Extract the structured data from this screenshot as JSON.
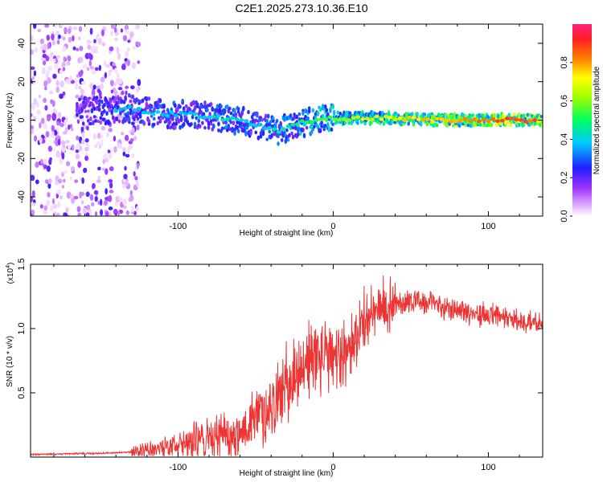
{
  "title": "C2E1.2025.273.10.36.E10",
  "chart_data": [
    {
      "type": "heatmap",
      "xlabel": "Height of straight line (km)",
      "ylabel": "Frequency (Hz)",
      "xlim": [
        -195,
        135
      ],
      "ylim": [
        -50,
        50
      ],
      "xticks": [
        -100,
        0,
        100
      ],
      "xtick_labels": [
        "-100",
        "0",
        "100"
      ],
      "yticks": [
        -40,
        -20,
        0,
        20,
        40
      ],
      "ytick_labels": [
        "-40",
        "-20",
        "0",
        "20",
        "40"
      ],
      "colorbar": {
        "label": "Normalized spectral amplitude",
        "range": [
          0,
          1
        ],
        "ticks": [
          0.0,
          0.2,
          0.4,
          0.6,
          0.8
        ],
        "tick_labels": [
          "0.0",
          "0.2",
          "0.4",
          "0.6",
          "0.8"
        ]
      },
      "ridge": {
        "x": [
          -150,
          -130,
          -110,
          -90,
          -70,
          -50,
          -35,
          -25,
          -10,
          0,
          20,
          40,
          60,
          80,
          100,
          120,
          135
        ],
        "freq": [
          5,
          6,
          3,
          3,
          1,
          -2,
          -6,
          -2,
          0,
          1,
          1,
          1,
          0,
          0,
          0,
          0,
          0
        ],
        "amplitude": [
          0.35,
          0.4,
          0.4,
          0.4,
          0.45,
          0.4,
          0.45,
          0.5,
          0.55,
          0.6,
          0.7,
          0.75,
          0.8,
          0.85,
          0.9,
          0.9,
          0.9
        ]
      },
      "noise_region": {
        "x": [
          -195,
          -125
        ],
        "freq": [
          -50,
          50
        ]
      }
    },
    {
      "type": "line",
      "xlabel": "Height of straight line (km)",
      "ylabel": "SNR (10 * v/v)",
      "scale_label": "(x10",
      "scale_exponent": "4",
      "scale_suffix": ")",
      "xlim": [
        -195,
        135
      ],
      "ylim": [
        0,
        1.5
      ],
      "xticks": [
        -100,
        0,
        100
      ],
      "xtick_labels": [
        "-100",
        "0",
        "100"
      ],
      "yticks": [
        0.5,
        1.0,
        1.5
      ],
      "ytick_labels": [
        "0.5",
        "1.0",
        "1.5"
      ],
      "color": "#ee3333",
      "series": [
        {
          "name": "SNR",
          "x": [
            -195,
            -150,
            -125,
            -110,
            -100,
            -80,
            -60,
            -50,
            -40,
            -30,
            -20,
            -10,
            0,
            10,
            20,
            30,
            40,
            50,
            60,
            70,
            80,
            90,
            100,
            110,
            120,
            135
          ],
          "values": [
            0.02,
            0.03,
            0.04,
            0.07,
            0.1,
            0.15,
            0.2,
            0.3,
            0.4,
            0.55,
            0.7,
            0.8,
            0.75,
            0.85,
            1.05,
            1.15,
            1.2,
            1.22,
            1.2,
            1.18,
            1.15,
            1.12,
            1.1,
            1.08,
            1.06,
            1.03
          ]
        }
      ]
    }
  ]
}
